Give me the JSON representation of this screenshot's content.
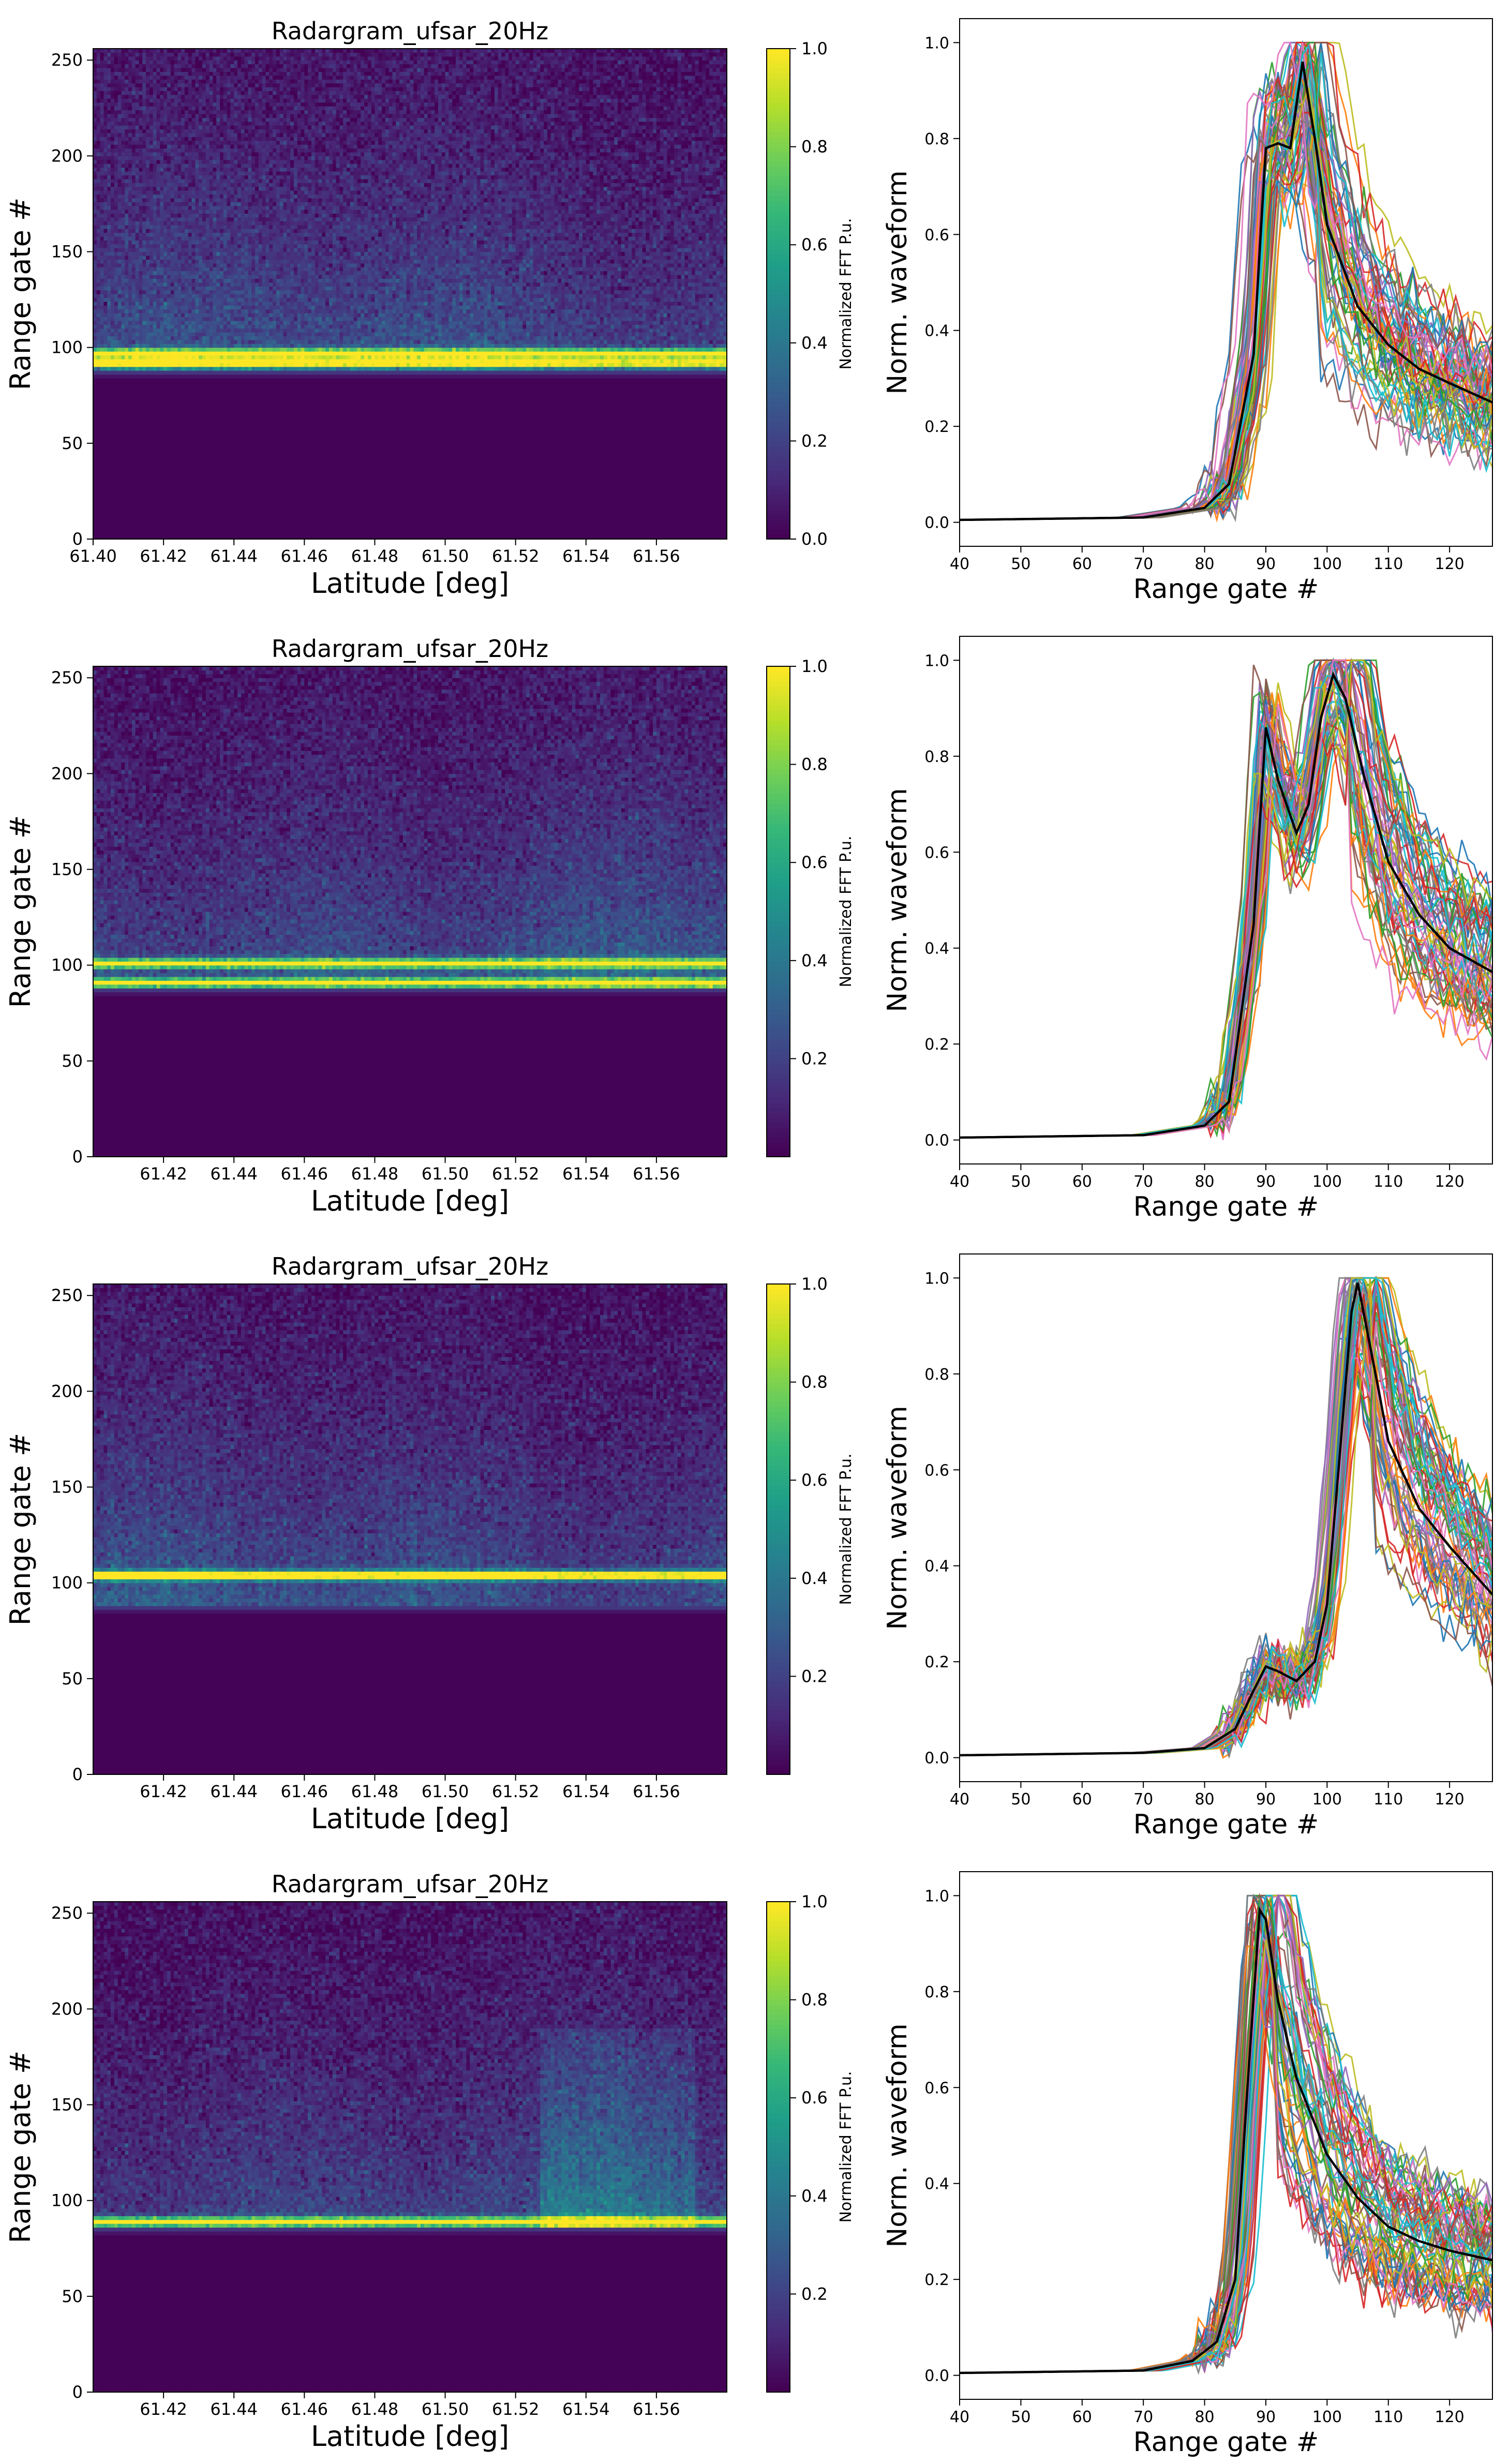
{
  "colors": {
    "mean_line": "#000000",
    "cmap": [
      "#440154",
      "#482878",
      "#3e4989",
      "#31688e",
      "#26828e",
      "#1f9e89",
      "#35b779",
      "#6ece58",
      "#b5de2b",
      "#fde725"
    ],
    "tab10": [
      "#1f77b4",
      "#ff7f0e",
      "#2ca02c",
      "#d62728",
      "#9467bd",
      "#8c564b",
      "#e377c2",
      "#7f7f7f",
      "#bcbd22",
      "#17becf"
    ]
  },
  "chart_data": [
    {
      "type": "heatmap",
      "title": "Radargram_ufsar_20Hz",
      "xlabel": "Latitude [deg]",
      "ylabel": "Range gate #",
      "xlim": [
        61.4,
        61.58
      ],
      "ylim": [
        0,
        256
      ],
      "xticks": [
        "61.40",
        "61.42",
        "61.44",
        "61.46",
        "61.48",
        "61.50",
        "61.52",
        "61.54",
        "61.56"
      ],
      "xtick_values": [
        61.4,
        61.42,
        61.44,
        61.46,
        61.48,
        61.5,
        61.52,
        61.54,
        61.56
      ],
      "yticks": [
        "0",
        "50",
        "100",
        "150",
        "200",
        "250"
      ],
      "ytick_values": [
        0,
        50,
        100,
        150,
        200,
        250
      ],
      "colorbar_label": "Normalized FFT P.u.",
      "colorbar_ticks": [
        "0.0",
        "0.2",
        "0.4",
        "0.6",
        "0.8",
        "1.0"
      ],
      "colorbar_tick_values": [
        0.0,
        0.2,
        0.4,
        0.6,
        0.8,
        1.0
      ],
      "surface_gate": 88,
      "bright_bands": [
        {
          "gate": 92,
          "strength": 0.9
        },
        {
          "gate": 97,
          "strength": 1.0
        }
      ],
      "volume_level": 0.22
    },
    {
      "type": "line",
      "xlabel": "Range gate #",
      "ylabel": "Norm. waveform",
      "xlim": [
        40,
        127
      ],
      "ylim": [
        -0.05,
        1.05
      ],
      "xticks": [
        "40",
        "50",
        "60",
        "70",
        "80",
        "90",
        "100",
        "110",
        "120"
      ],
      "xtick_values": [
        40,
        50,
        60,
        70,
        80,
        90,
        100,
        110,
        120
      ],
      "yticks": [
        "0.0",
        "0.2",
        "0.4",
        "0.6",
        "0.8",
        "1.0"
      ],
      "ytick_values": [
        0,
        0.2,
        0.4,
        0.6,
        0.8,
        1.0
      ],
      "mean_curve": {
        "x": [
          40,
          70,
          80,
          84,
          88,
          90,
          92,
          94,
          96,
          98,
          100,
          105,
          110,
          115,
          120,
          127
        ],
        "y": [
          0.005,
          0.01,
          0.03,
          0.08,
          0.35,
          0.78,
          0.79,
          0.78,
          0.96,
          0.8,
          0.62,
          0.45,
          0.37,
          0.32,
          0.29,
          0.25
        ]
      },
      "ensemble_count": 60,
      "tail_spread": [
        0.14,
        0.48
      ]
    },
    {
      "type": "heatmap",
      "title": "Radargram_ufsar_20Hz",
      "xlabel": "Latitude [deg]",
      "ylabel": "Range gate #",
      "xlim": [
        61.4,
        61.58
      ],
      "ylim": [
        0,
        256
      ],
      "xticks": [
        "61.42",
        "61.44",
        "61.46",
        "61.48",
        "61.50",
        "61.52",
        "61.54",
        "61.56"
      ],
      "xtick_values": [
        61.42,
        61.44,
        61.46,
        61.48,
        61.5,
        61.52,
        61.54,
        61.56
      ],
      "yticks": [
        "0",
        "50",
        "100",
        "150",
        "200",
        "250"
      ],
      "ytick_values": [
        0,
        50,
        100,
        150,
        200,
        250
      ],
      "colorbar_label": "Normalized FFT P.u.",
      "colorbar_ticks": [
        "0.2",
        "0.4",
        "0.6",
        "0.8",
        "1.0"
      ],
      "colorbar_tick_values": [
        0.2,
        0.4,
        0.6,
        0.8,
        1.0
      ],
      "surface_gate": 88,
      "bright_bands": [
        {
          "gate": 91,
          "strength": 0.95
        },
        {
          "gate": 101,
          "strength": 1.0
        }
      ],
      "volume_level": 0.24
    },
    {
      "type": "line",
      "xlabel": "Range gate #",
      "ylabel": "Norm. waveform",
      "xlim": [
        40,
        127
      ],
      "ylim": [
        -0.05,
        1.05
      ],
      "xticks": [
        "40",
        "50",
        "60",
        "70",
        "80",
        "90",
        "100",
        "110",
        "120"
      ],
      "xtick_values": [
        40,
        50,
        60,
        70,
        80,
        90,
        100,
        110,
        120
      ],
      "yticks": [
        "0.0",
        "0.2",
        "0.4",
        "0.6",
        "0.8",
        "1.0"
      ],
      "ytick_values": [
        0,
        0.2,
        0.4,
        0.6,
        0.8,
        1.0
      ],
      "mean_curve": {
        "x": [
          40,
          70,
          80,
          84,
          88,
          90,
          92,
          95,
          97,
          99,
          101,
          103,
          106,
          110,
          115,
          120,
          127
        ],
        "y": [
          0.005,
          0.01,
          0.03,
          0.08,
          0.45,
          0.86,
          0.75,
          0.64,
          0.7,
          0.88,
          0.97,
          0.92,
          0.76,
          0.58,
          0.47,
          0.4,
          0.35
        ]
      },
      "ensemble_count": 60,
      "tail_spread": [
        0.25,
        0.52
      ]
    },
    {
      "type": "heatmap",
      "title": "Radargram_ufsar_20Hz",
      "xlabel": "Latitude [deg]",
      "ylabel": "Range gate #",
      "xlim": [
        61.4,
        61.58
      ],
      "ylim": [
        0,
        256
      ],
      "xticks": [
        "61.42",
        "61.44",
        "61.46",
        "61.48",
        "61.50",
        "61.52",
        "61.54",
        "61.56"
      ],
      "xtick_values": [
        61.42,
        61.44,
        61.46,
        61.48,
        61.5,
        61.52,
        61.54,
        61.56
      ],
      "yticks": [
        "0",
        "50",
        "100",
        "150",
        "200",
        "250"
      ],
      "ytick_values": [
        0,
        50,
        100,
        150,
        200,
        250
      ],
      "colorbar_label": "Normalized FFT P.u.",
      "colorbar_ticks": [
        "0.2",
        "0.4",
        "0.6",
        "0.8",
        "1.0"
      ],
      "colorbar_tick_values": [
        0.2,
        0.4,
        0.6,
        0.8,
        1.0
      ],
      "surface_gate": 88,
      "bright_bands": [
        {
          "gate": 104,
          "strength": 1.0
        }
      ],
      "volume_level": 0.22
    },
    {
      "type": "line",
      "xlabel": "Range gate #",
      "ylabel": "Norm. waveform",
      "xlim": [
        40,
        127
      ],
      "ylim": [
        -0.05,
        1.05
      ],
      "xticks": [
        "40",
        "50",
        "60",
        "70",
        "80",
        "90",
        "100",
        "110",
        "120"
      ],
      "xtick_values": [
        40,
        50,
        60,
        70,
        80,
        90,
        100,
        110,
        120
      ],
      "yticks": [
        "0.0",
        "0.2",
        "0.4",
        "0.6",
        "0.8",
        "1.0"
      ],
      "ytick_values": [
        0,
        0.2,
        0.4,
        0.6,
        0.8,
        1.0
      ],
      "mean_curve": {
        "x": [
          40,
          70,
          80,
          85,
          88,
          90,
          92,
          95,
          98,
          100,
          102,
          104,
          105,
          107,
          110,
          115,
          120,
          127
        ],
        "y": [
          0.005,
          0.01,
          0.02,
          0.06,
          0.14,
          0.19,
          0.18,
          0.16,
          0.2,
          0.32,
          0.62,
          0.93,
          0.99,
          0.86,
          0.66,
          0.52,
          0.44,
          0.34
        ]
      },
      "ensemble_count": 60,
      "tail_spread": [
        0.14,
        0.54
      ]
    },
    {
      "type": "heatmap",
      "title": "Radargram_ufsar_20Hz",
      "xlabel": "Latitude [deg]",
      "ylabel": "Range gate #",
      "xlim": [
        61.4,
        61.58
      ],
      "ylim": [
        0,
        256
      ],
      "xticks": [
        "61.42",
        "61.44",
        "61.46",
        "61.48",
        "61.50",
        "61.52",
        "61.54",
        "61.56"
      ],
      "xtick_values": [
        61.42,
        61.44,
        61.46,
        61.48,
        61.5,
        61.52,
        61.54,
        61.56
      ],
      "yticks": [
        "0",
        "50",
        "100",
        "150",
        "200",
        "250"
      ],
      "ytick_values": [
        0,
        50,
        100,
        150,
        200,
        250
      ],
      "colorbar_label": "Normalized FFT P.u.",
      "colorbar_ticks": [
        "0.2",
        "0.4",
        "0.6",
        "0.8",
        "1.0"
      ],
      "colorbar_tick_values": [
        0.2,
        0.4,
        0.6,
        0.8,
        1.0
      ],
      "surface_gate": 86,
      "bright_bands": [
        {
          "gate": 89,
          "strength": 1.0
        }
      ],
      "volume_level": 0.2
    },
    {
      "type": "line",
      "xlabel": "Range gate #",
      "ylabel": "Norm. waveform",
      "xlim": [
        40,
        127
      ],
      "ylim": [
        -0.05,
        1.05
      ],
      "xticks": [
        "40",
        "50",
        "60",
        "70",
        "80",
        "90",
        "100",
        "110",
        "120"
      ],
      "xtick_values": [
        40,
        50,
        60,
        70,
        80,
        90,
        100,
        110,
        120
      ],
      "yticks": [
        "0.0",
        "0.2",
        "0.4",
        "0.6",
        "0.8",
        "1.0"
      ],
      "ytick_values": [
        0,
        0.2,
        0.4,
        0.6,
        0.8,
        1.0
      ],
      "mean_curve": {
        "x": [
          40,
          70,
          78,
          82,
          85,
          87,
          89,
          90,
          92,
          95,
          100,
          105,
          110,
          115,
          120,
          127
        ],
        "y": [
          0.005,
          0.01,
          0.03,
          0.07,
          0.2,
          0.6,
          0.97,
          0.95,
          0.78,
          0.62,
          0.46,
          0.37,
          0.31,
          0.28,
          0.26,
          0.24
        ]
      },
      "ensemble_count": 60,
      "tail_spread": [
        0.15,
        0.52
      ]
    }
  ]
}
